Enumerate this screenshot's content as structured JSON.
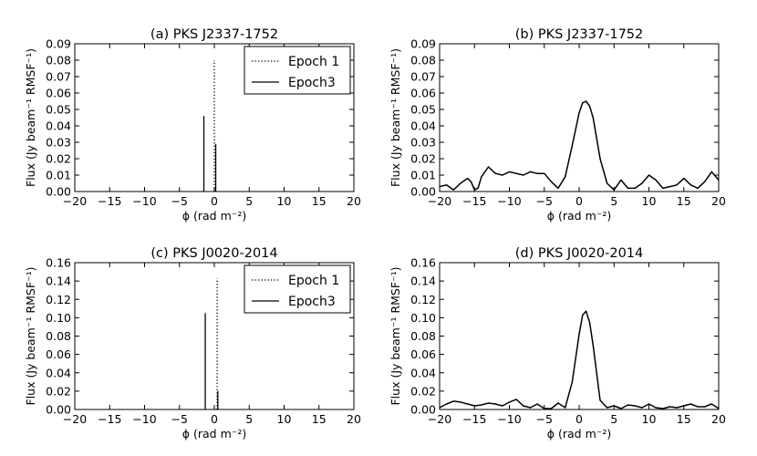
{
  "chart_data": [
    {
      "type": "bar",
      "title": "(a) PKS J2337-1752",
      "xlabel": "ϕ (rad m⁻²)",
      "ylabel": "Flux (Jy beam⁻¹ RMSF⁻¹)",
      "xlim": [
        -20,
        20
      ],
      "ylim": [
        0,
        0.09
      ],
      "xticks": [
        "−20",
        "−15",
        "−10",
        "−5",
        "0",
        "5",
        "10",
        "15",
        "20"
      ],
      "yticks": [
        "0.00",
        "0.01",
        "0.02",
        "0.03",
        "0.04",
        "0.05",
        "0.06",
        "0.07",
        "0.08",
        "0.09"
      ],
      "legend_position": "top-right",
      "series": [
        {
          "name": "Epoch 1",
          "style": "dotted",
          "x": [
            0.0
          ],
          "y": [
            0.08
          ]
        },
        {
          "name": "Epoch3",
          "style": "solid",
          "x": [
            -1.5,
            0.2
          ],
          "y": [
            0.046,
            0.029
          ]
        }
      ]
    },
    {
      "type": "line",
      "title": "(b) PKS J2337-1752",
      "xlabel": "ϕ (rad m⁻²)",
      "ylabel": "Flux (Jy beam⁻¹ RMSF⁻¹)",
      "xlim": [
        -20,
        20
      ],
      "ylim": [
        0,
        0.09
      ],
      "xticks": [
        "−20",
        "−15",
        "−10",
        "−5",
        "0",
        "5",
        "10",
        "15",
        "20"
      ],
      "yticks": [
        "0.00",
        "0.01",
        "0.02",
        "0.03",
        "0.04",
        "0.05",
        "0.06",
        "0.07",
        "0.08",
        "0.09"
      ],
      "series": [
        {
          "x": [
            -20,
            -19,
            -18,
            -17,
            -16,
            -15.5,
            -15,
            -14.5,
            -14,
            -13,
            -12,
            -11,
            -10,
            -9,
            -8,
            -7,
            -6,
            -5,
            -4,
            -3,
            -2,
            -1,
            0,
            0.5,
            1,
            1.5,
            2,
            3,
            4,
            5,
            6,
            7,
            8,
            9,
            10,
            11,
            12,
            13,
            14,
            15,
            16,
            17,
            18,
            19,
            20
          ],
          "y": [
            0.003,
            0.004,
            0.001,
            0.005,
            0.008,
            0.006,
            0.001,
            0.002,
            0.009,
            0.015,
            0.011,
            0.01,
            0.012,
            0.011,
            0.01,
            0.012,
            0.011,
            0.011,
            0.006,
            0.002,
            0.009,
            0.028,
            0.048,
            0.054,
            0.055,
            0.052,
            0.045,
            0.02,
            0.005,
            0.001,
            0.007,
            0.002,
            0.002,
            0.005,
            0.01,
            0.007,
            0.002,
            0.003,
            0.004,
            0.008,
            0.004,
            0.002,
            0.006,
            0.012,
            0.007
          ]
        }
      ]
    },
    {
      "type": "bar",
      "title": "(c) PKS J0020-2014",
      "xlabel": "ϕ (rad m⁻²)",
      "ylabel": "Flux (Jy beam⁻¹ RMSF⁻¹)",
      "xlim": [
        -20,
        20
      ],
      "ylim": [
        0,
        0.16
      ],
      "xticks": [
        "−20",
        "−15",
        "−10",
        "−5",
        "0",
        "5",
        "10",
        "15",
        "20"
      ],
      "yticks": [
        "0.00",
        "0.02",
        "0.04",
        "0.06",
        "0.08",
        "0.10",
        "0.12",
        "0.14",
        "0.16"
      ],
      "legend_position": "top-right",
      "series": [
        {
          "name": "Epoch 1",
          "style": "dotted",
          "x": [
            0.4
          ],
          "y": [
            0.143
          ]
        },
        {
          "name": "Epoch3",
          "style": "solid",
          "x": [
            -1.3,
            0.5
          ],
          "y": [
            0.105,
            0.02
          ]
        }
      ]
    },
    {
      "type": "line",
      "title": "(d) PKS J0020-2014",
      "xlabel": "ϕ (rad m⁻²)",
      "ylabel": "Flux (Jy beam⁻¹ RMSF⁻¹)",
      "xlim": [
        -20,
        20
      ],
      "ylim": [
        0,
        0.16
      ],
      "xticks": [
        "−20",
        "−15",
        "−10",
        "−5",
        "0",
        "5",
        "10",
        "15",
        "20"
      ],
      "yticks": [
        "0.00",
        "0.02",
        "0.04",
        "0.06",
        "0.08",
        "0.10",
        "0.12",
        "0.14",
        "0.16"
      ],
      "series": [
        {
          "x": [
            -20,
            -19,
            -18,
            -17,
            -16,
            -15,
            -14,
            -13,
            -12,
            -11,
            -10,
            -9,
            -8,
            -7,
            -6,
            -5,
            -4,
            -3,
            -2,
            -1,
            0,
            0.5,
            1,
            1.5,
            2,
            3,
            4,
            5,
            6,
            7,
            8,
            9,
            10,
            11,
            12,
            13,
            14,
            15,
            16,
            17,
            18,
            19,
            20
          ],
          "y": [
            0.002,
            0.006,
            0.009,
            0.008,
            0.006,
            0.004,
            0.005,
            0.007,
            0.006,
            0.004,
            0.008,
            0.011,
            0.004,
            0.002,
            0.006,
            0.001,
            0.001,
            0.007,
            0.002,
            0.03,
            0.082,
            0.103,
            0.107,
            0.095,
            0.07,
            0.01,
            0.002,
            0.004,
            0.001,
            0.005,
            0.004,
            0.002,
            0.006,
            0.002,
            0.001,
            0.003,
            0.002,
            0.004,
            0.006,
            0.003,
            0.003,
            0.006,
            0.001
          ]
        }
      ]
    }
  ]
}
